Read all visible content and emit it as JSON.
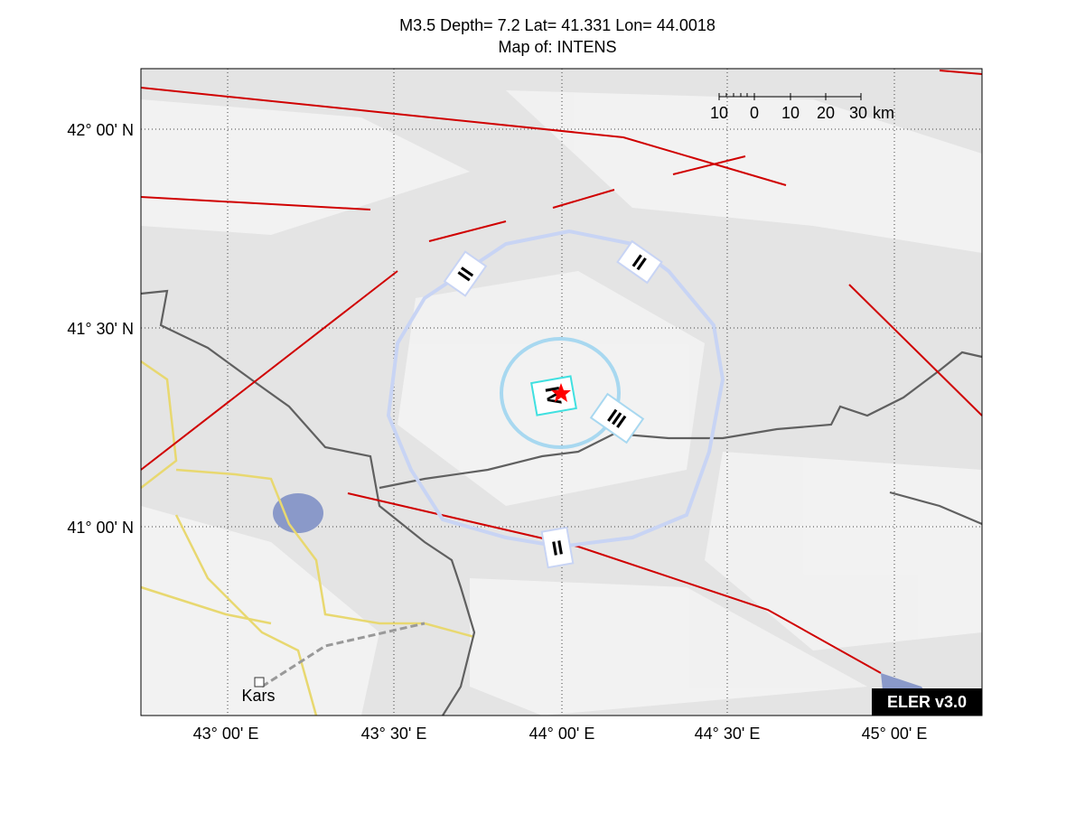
{
  "header": {
    "title": [
      "M3.5 Depth= 7.2 Lat= 41.331 Lon= 44.0018",
      "Map of: INTENS"
    ]
  },
  "map": {
    "lat_labels": [
      "42° 00' N",
      "41° 30' N",
      "41° 00' N"
    ],
    "lon_labels": [
      "43° 00' E",
      "43° 30' E",
      "44° 00' E",
      "44° 30' E",
      "45° 00' E"
    ],
    "scale_bar": {
      "labels": [
        "10",
        "0",
        "10",
        "20",
        "30"
      ],
      "unit": "km"
    },
    "contour_labels": [
      "II",
      "II",
      "III",
      "IV",
      "II"
    ],
    "places": [
      "Kars"
    ],
    "watermark": "ELER v3.0"
  }
}
